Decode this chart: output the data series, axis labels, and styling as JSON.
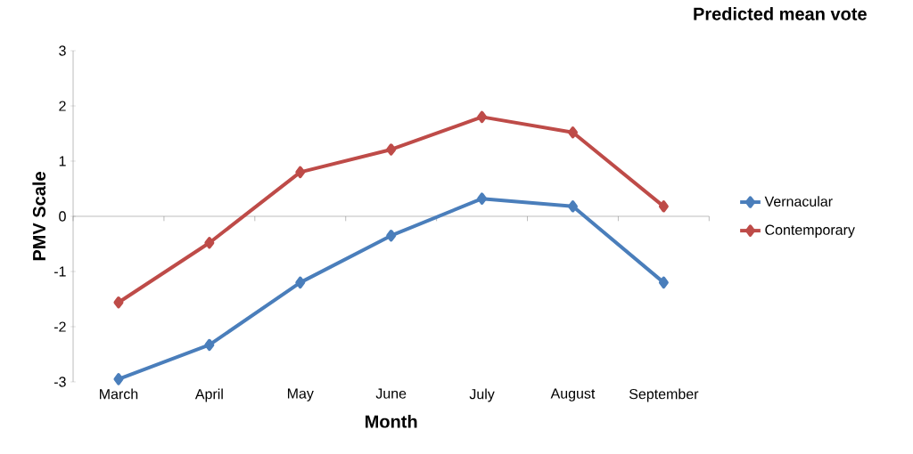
{
  "chart_data": {
    "type": "line",
    "title": "Predicted mean vote",
    "xlabel": "Month",
    "ylabel": "PMV Scale",
    "categories": [
      "March",
      "April",
      "May",
      "June",
      "July",
      "August",
      "September"
    ],
    "series": [
      {
        "name": "Vernacular",
        "color": "#4a7ebb",
        "values": [
          -2.95,
          -2.33,
          -1.2,
          -0.35,
          0.32,
          0.18,
          -1.2
        ]
      },
      {
        "name": "Contemporary",
        "color": "#be4b48",
        "values": [
          -1.56,
          -0.48,
          0.8,
          1.21,
          1.8,
          1.52,
          0.18
        ]
      }
    ],
    "ylim": [
      -3,
      3
    ],
    "yticks": [
      -3,
      -2,
      -1,
      0,
      1,
      2,
      3
    ],
    "ref_lines": [
      {
        "axis": "y",
        "value": 0
      }
    ],
    "legend": "right",
    "marker": "diamond",
    "line_style": "solid"
  }
}
